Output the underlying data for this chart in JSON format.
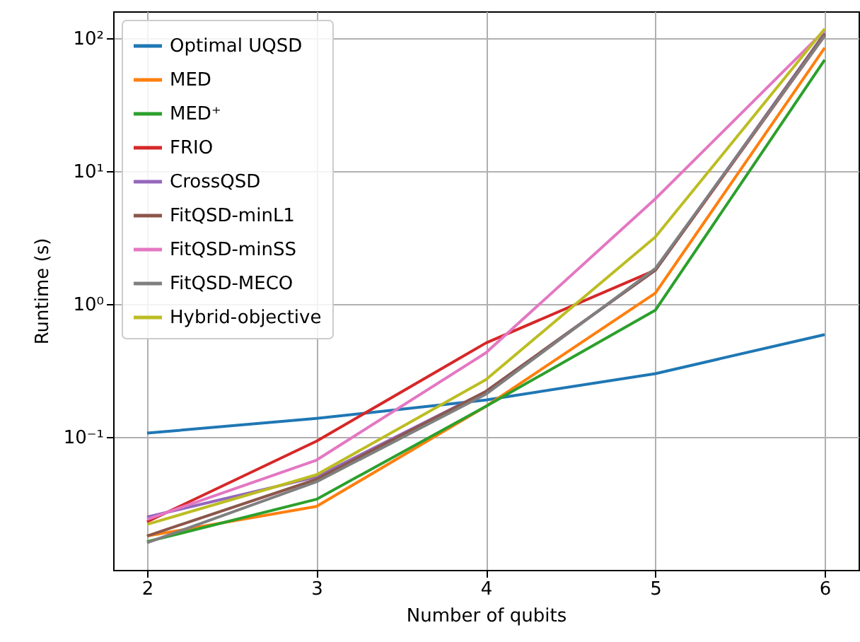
{
  "chart_data": {
    "type": "line",
    "xlabel": "Number of qubits",
    "ylabel": "Runtime (s)",
    "x": [
      2,
      3,
      4,
      5,
      6
    ],
    "xlim": [
      1.8,
      6.2
    ],
    "xticks": [
      2,
      3,
      4,
      5,
      6
    ],
    "ylim": [
      0.01,
      160
    ],
    "yticks": [
      {
        "value": 0.1,
        "label": "10⁻¹"
      },
      {
        "value": 1,
        "label": "10⁰"
      },
      {
        "value": 10,
        "label": "10¹"
      },
      {
        "value": 100,
        "label": "10²"
      }
    ],
    "log": "y",
    "grid": true,
    "legend": "top left",
    "series": [
      {
        "name": "Optimal UQSD",
        "color": "#1f77b4",
        "values": [
          0.107,
          0.138,
          0.19,
          0.3,
          0.59
        ]
      },
      {
        "name": "MED",
        "color": "#ff7f0e",
        "values": [
          0.018,
          0.03,
          0.17,
          1.21,
          85
        ]
      },
      {
        "name": "MED⁺",
        "color": "#2ca02c",
        "values": [
          0.0163,
          0.034,
          0.17,
          0.9,
          69
        ]
      },
      {
        "name": "FRIO",
        "color": "#d62728",
        "values": [
          0.023,
          0.093,
          0.51,
          1.8,
          105
        ]
      },
      {
        "name": "CrossQSD",
        "color": "#9467bd",
        "values": [
          0.025,
          0.05,
          0.22,
          1.8,
          110
        ]
      },
      {
        "name": "FitQSD-minL1",
        "color": "#8c564b",
        "values": [
          0.018,
          0.048,
          0.22,
          1.8,
          108
        ]
      },
      {
        "name": "FitQSD-minSS",
        "color": "#e377c2",
        "values": [
          0.024,
          0.067,
          0.43,
          6.2,
          115
        ]
      },
      {
        "name": "FitQSD-MECO",
        "color": "#7f7f7f",
        "values": [
          0.016,
          0.046,
          0.21,
          1.85,
          105
        ]
      },
      {
        "name": "Hybrid-objective",
        "color": "#bcbd22",
        "values": [
          0.022,
          0.052,
          0.27,
          3.2,
          118
        ]
      }
    ]
  }
}
